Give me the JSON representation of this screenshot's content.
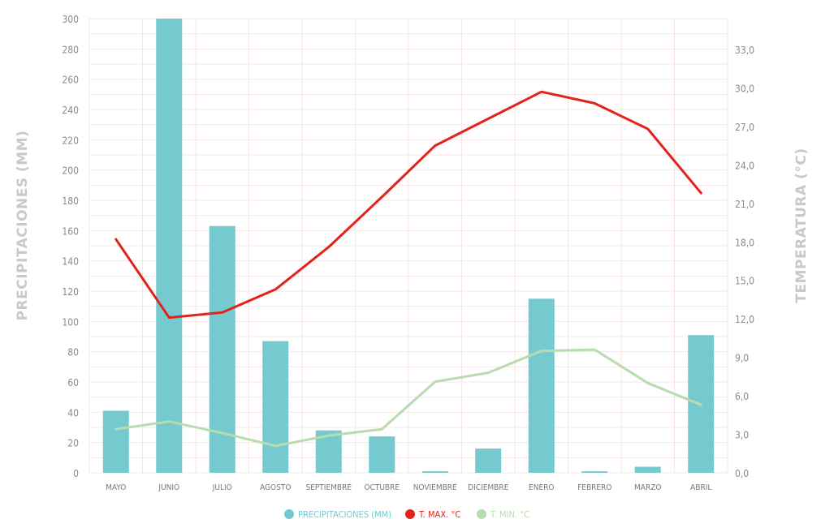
{
  "chart_data": {
    "type": "bar+line",
    "categories": [
      "MAYO",
      "JUNIO",
      "JULIO",
      "AGOSTO",
      "SEPTIEMBRE",
      "OCTUBRE",
      "NOVIEMBRE",
      "DICIEMBRE",
      "ENERO",
      "FEBRERO",
      "MARZO",
      "ABRIL"
    ],
    "series": [
      {
        "name": "PRECIPITACIONES (MM)",
        "kind": "bar",
        "axis": "left",
        "color": "#74cacf",
        "values": [
          41,
          300,
          163,
          87,
          28,
          24,
          1,
          16,
          115,
          1,
          4,
          91
        ]
      },
      {
        "name": "T. MAX. °C",
        "kind": "line",
        "axis": "right",
        "color": "#e2231a",
        "values": [
          18.2,
          12.1,
          12.5,
          14.3,
          17.6,
          21.5,
          25.5,
          27.6,
          29.7,
          28.8,
          26.8,
          21.8
        ]
      },
      {
        "name": "T. MIN. °C",
        "kind": "line",
        "axis": "right",
        "color": "#b9dbb0",
        "values": [
          3.4,
          4.0,
          3.1,
          2.1,
          2.9,
          3.4,
          7.1,
          7.8,
          9.5,
          9.6,
          7.0,
          5.3
        ]
      }
    ],
    "ylabel": "PRECIPITACIONES (MM)",
    "y2label": "TEMPERATURA (°C)",
    "ylim": [
      0,
      300
    ],
    "y2lim": [
      0,
      35.4
    ],
    "yticks": [
      "0",
      "20",
      "40",
      "60",
      "80",
      "100",
      "120",
      "140",
      "160",
      "180",
      "200",
      "220",
      "240",
      "260",
      "280",
      "300"
    ],
    "y2ticks": [
      "0,0",
      "3,0",
      "6,0",
      "9,0",
      "12,0",
      "15,0",
      "18,0",
      "21,0",
      "24,0",
      "27,0",
      "30,0",
      "33,0"
    ],
    "y2tick_values": [
      0,
      3,
      6,
      9,
      12,
      15,
      18,
      21,
      24,
      27,
      30,
      33
    ],
    "grid": true,
    "legend_position": "bottom-center"
  }
}
